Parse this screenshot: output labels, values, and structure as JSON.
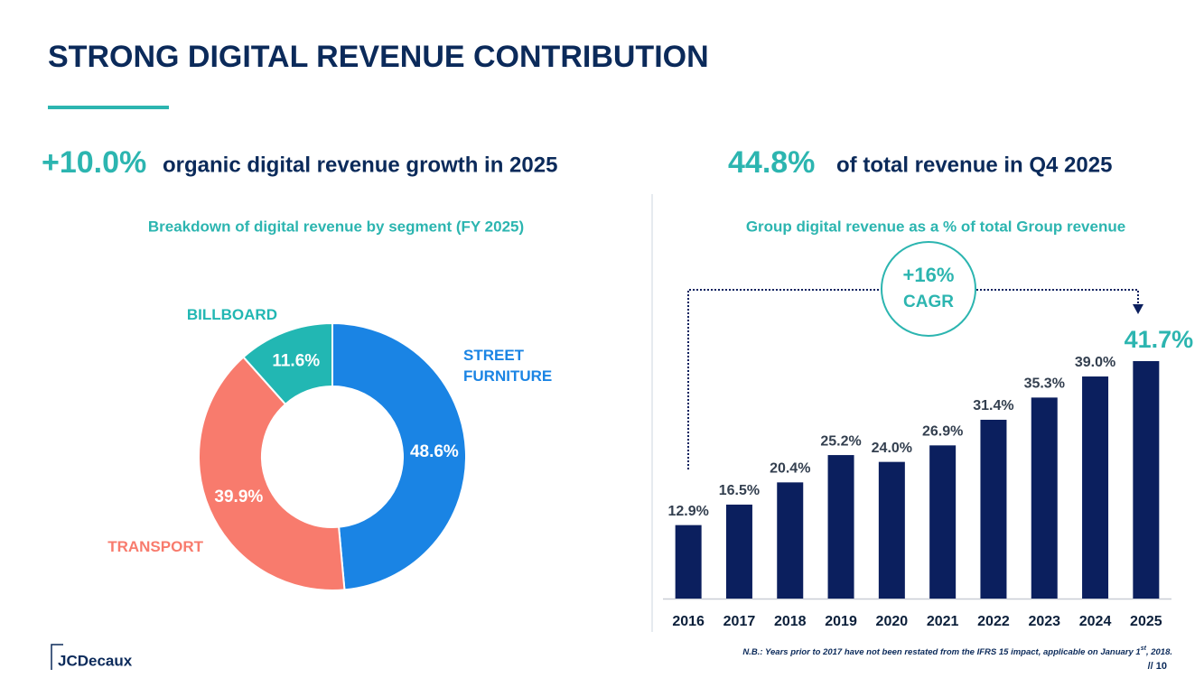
{
  "title": "STRONG DIGITAL REVENUE CONTRIBUTION",
  "kpis": [
    {
      "figure": "+10.0%",
      "text": "organic digital revenue growth in 2025"
    },
    {
      "figure": "44.8%",
      "text": "of total revenue in Q4 2025"
    }
  ],
  "chart_data": [
    {
      "type": "donut",
      "title": "Breakdown of digital revenue by segment (FY 2025)",
      "categories": [
        "STREET FURNITURE",
        "TRANSPORT",
        "BILLBOARD"
      ],
      "values": [
        48.6,
        39.9,
        11.6
      ],
      "value_labels": [
        "48.6%",
        "39.9%",
        "11.6%"
      ],
      "colors": [
        "#1a84e4",
        "#f87b6d",
        "#22b7b3"
      ]
    },
    {
      "type": "bar",
      "title": "Group digital revenue as a % of total Group revenue",
      "categories": [
        "2016",
        "2017",
        "2018",
        "2019",
        "2020",
        "2021",
        "2022",
        "2023",
        "2024",
        "2025"
      ],
      "values": [
        12.9,
        16.5,
        20.4,
        25.2,
        24.0,
        26.9,
        31.4,
        35.3,
        39.0,
        41.7
      ],
      "value_labels": [
        "12.9%",
        "16.5%",
        "20.4%",
        "25.2%",
        "24.0%",
        "26.9%",
        "31.4%",
        "35.3%",
        "39.0%",
        "41.7%"
      ],
      "color": "#0b1f5e",
      "highlight_index": 9,
      "highlight_color": "#2cb5b0",
      "annotations": [
        "+16%",
        "CAGR"
      ]
    }
  ],
  "footnote": [
    "N.B.: Years prior to 2017 have not been restated from the IFRS 15 impact, applicable on January 1",
    "st",
    ", 2018."
  ],
  "page": "// 10",
  "logo": "JCDecaux"
}
